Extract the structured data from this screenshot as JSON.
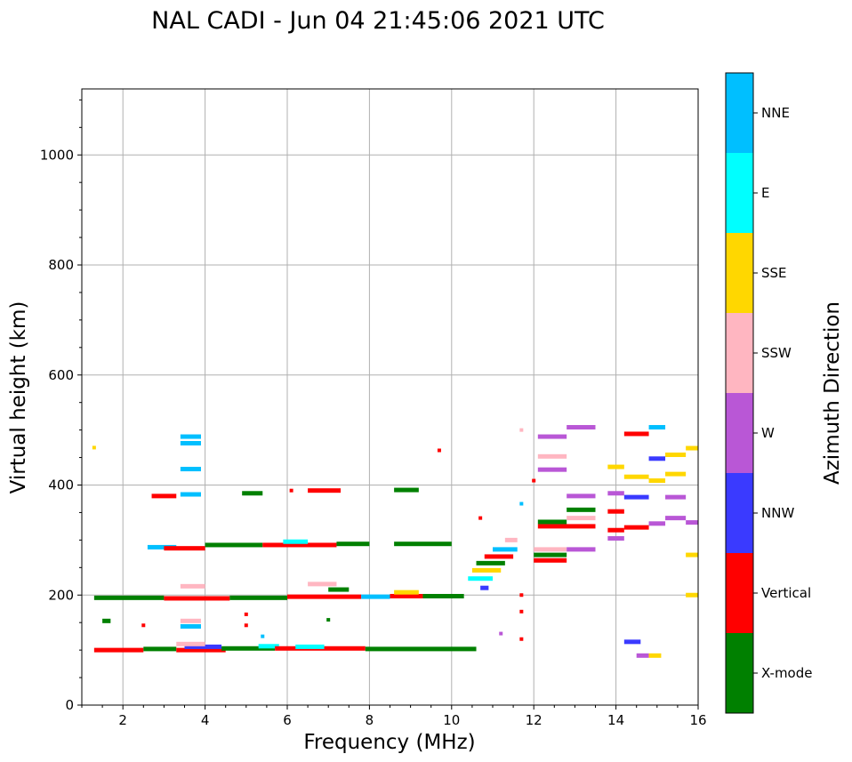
{
  "chart_data": {
    "type": "scatter",
    "title": "NAL CADI - Jun 04 21:45:06 2021 UTC",
    "xlabel": "Frequency (MHz)",
    "ylabel": "Virtual height (km)",
    "xlim": [
      1,
      16
    ],
    "ylim": [
      0,
      1120
    ],
    "xticks": [
      2,
      4,
      6,
      8,
      10,
      12,
      14,
      16
    ],
    "yticks": [
      0,
      200,
      400,
      600,
      800,
      1000
    ],
    "grid": true,
    "colorbar": {
      "label": "Azimuth Direction",
      "categories": [
        {
          "name": "X-mode",
          "color": "#008000"
        },
        {
          "name": "Vertical",
          "color": "#ff0000"
        },
        {
          "name": "NNW",
          "color": "#3a3aff"
        },
        {
          "name": "W",
          "color": "#b957d6"
        },
        {
          "name": "SSW",
          "color": "#ffb6c1"
        },
        {
          "name": "SSE",
          "color": "#ffd700"
        },
        {
          "name": "E",
          "color": "#00ffff"
        },
        {
          "name": "NNE",
          "color": "#00bfff"
        }
      ]
    },
    "segments": [
      {
        "f0": 1.3,
        "f1": 2.5,
        "h": 100,
        "c": "Vertical"
      },
      {
        "f0": 2.5,
        "f1": 3.3,
        "h": 102,
        "c": "X-mode"
      },
      {
        "f0": 3.3,
        "f1": 4.5,
        "h": 100,
        "c": "Vertical"
      },
      {
        "f0": 3.5,
        "f1": 4.4,
        "h": 106,
        "c": "NNW"
      },
      {
        "f0": 3.3,
        "f1": 4.0,
        "h": 111,
        "c": "SSW"
      },
      {
        "f0": 4.4,
        "f1": 5.7,
        "h": 103,
        "c": "X-mode"
      },
      {
        "f0": 5.3,
        "f1": 5.8,
        "h": 107,
        "c": "E"
      },
      {
        "f0": 5.7,
        "f1": 7.9,
        "h": 103,
        "c": "Vertical"
      },
      {
        "f0": 6.2,
        "f1": 6.9,
        "h": 106,
        "c": "E"
      },
      {
        "f0": 7.9,
        "f1": 10.6,
        "h": 102,
        "c": "X-mode"
      },
      {
        "f0": 1.5,
        "f1": 1.7,
        "h": 153,
        "c": "X-mode"
      },
      {
        "f0": 3.4,
        "f1": 3.9,
        "h": 153,
        "c": "SSW"
      },
      {
        "f0": 3.4,
        "f1": 3.9,
        "h": 143,
        "c": "NNE"
      },
      {
        "f0": 1.3,
        "f1": 3.0,
        "h": 195,
        "c": "X-mode"
      },
      {
        "f0": 3.0,
        "f1": 4.6,
        "h": 194,
        "c": "Vertical"
      },
      {
        "f0": 3.4,
        "f1": 4.0,
        "h": 216,
        "c": "SSW"
      },
      {
        "f0": 4.6,
        "f1": 6.0,
        "h": 195,
        "c": "X-mode"
      },
      {
        "f0": 6.0,
        "f1": 7.8,
        "h": 197,
        "c": "Vertical"
      },
      {
        "f0": 6.5,
        "f1": 7.2,
        "h": 220,
        "c": "SSW"
      },
      {
        "f0": 7.0,
        "f1": 7.5,
        "h": 210,
        "c": "X-mode"
      },
      {
        "f0": 7.8,
        "f1": 8.5,
        "h": 197,
        "c": "NNE"
      },
      {
        "f0": 8.5,
        "f1": 9.3,
        "h": 198,
        "c": "Vertical"
      },
      {
        "f0": 8.6,
        "f1": 9.2,
        "h": 205,
        "c": "SSE"
      },
      {
        "f0": 9.3,
        "f1": 10.3,
        "h": 198,
        "c": "X-mode"
      },
      {
        "f0": 2.6,
        "f1": 3.3,
        "h": 287,
        "c": "NNE"
      },
      {
        "f0": 3.0,
        "f1": 4.0,
        "h": 285,
        "c": "Vertical"
      },
      {
        "f0": 4.0,
        "f1": 5.4,
        "h": 291,
        "c": "X-mode"
      },
      {
        "f0": 5.4,
        "f1": 7.2,
        "h": 291,
        "c": "Vertical"
      },
      {
        "f0": 5.9,
        "f1": 6.5,
        "h": 297,
        "c": "E"
      },
      {
        "f0": 7.2,
        "f1": 8.0,
        "h": 293,
        "c": "X-mode"
      },
      {
        "f0": 8.6,
        "f1": 10.0,
        "h": 293,
        "c": "X-mode"
      },
      {
        "f0": 2.7,
        "f1": 3.3,
        "h": 380,
        "c": "Vertical"
      },
      {
        "f0": 3.4,
        "f1": 3.9,
        "h": 383,
        "c": "NNE"
      },
      {
        "f0": 4.9,
        "f1": 5.4,
        "h": 385,
        "c": "X-mode"
      },
      {
        "f0": 6.5,
        "f1": 7.3,
        "h": 390,
        "c": "Vertical"
      },
      {
        "f0": 8.6,
        "f1": 9.2,
        "h": 391,
        "c": "X-mode"
      },
      {
        "f0": 3.4,
        "f1": 3.9,
        "h": 429,
        "c": "NNE"
      },
      {
        "f0": 3.4,
        "f1": 3.9,
        "h": 476,
        "c": "NNE"
      },
      {
        "f0": 3.4,
        "f1": 3.9,
        "h": 488,
        "c": "NNE"
      },
      {
        "f0": 10.4,
        "f1": 11.0,
        "h": 230,
        "c": "E"
      },
      {
        "f0": 10.5,
        "f1": 11.2,
        "h": 245,
        "c": "SSE"
      },
      {
        "f0": 10.6,
        "f1": 11.3,
        "h": 258,
        "c": "X-mode"
      },
      {
        "f0": 10.8,
        "f1": 11.5,
        "h": 270,
        "c": "Vertical"
      },
      {
        "f0": 11.0,
        "f1": 11.6,
        "h": 283,
        "c": "NNE"
      },
      {
        "f0": 11.3,
        "f1": 11.6,
        "h": 300,
        "c": "SSW"
      },
      {
        "f0": 10.7,
        "f1": 10.9,
        "h": 213,
        "c": "NNW"
      },
      {
        "f0": 12.0,
        "f1": 12.8,
        "h": 263,
        "c": "Vertical"
      },
      {
        "f0": 12.0,
        "f1": 12.8,
        "h": 273,
        "c": "X-mode"
      },
      {
        "f0": 12.0,
        "f1": 12.8,
        "h": 283,
        "c": "SSW"
      },
      {
        "f0": 12.1,
        "f1": 13.5,
        "h": 325,
        "c": "Vertical"
      },
      {
        "f0": 12.1,
        "f1": 12.8,
        "h": 333,
        "c": "X-mode"
      },
      {
        "f0": 12.8,
        "f1": 13.5,
        "h": 283,
        "c": "W"
      },
      {
        "f0": 12.8,
        "f1": 13.5,
        "h": 340,
        "c": "SSW"
      },
      {
        "f0": 12.8,
        "f1": 13.5,
        "h": 355,
        "c": "X-mode"
      },
      {
        "f0": 12.8,
        "f1": 13.5,
        "h": 380,
        "c": "W"
      },
      {
        "f0": 12.1,
        "f1": 12.8,
        "h": 428,
        "c": "W"
      },
      {
        "f0": 12.1,
        "f1": 12.8,
        "h": 452,
        "c": "SSW"
      },
      {
        "f0": 12.1,
        "f1": 12.8,
        "h": 488,
        "c": "W"
      },
      {
        "f0": 12.8,
        "f1": 13.5,
        "h": 505,
        "c": "W"
      },
      {
        "f0": 13.8,
        "f1": 14.2,
        "h": 318,
        "c": "Vertical"
      },
      {
        "f0": 13.8,
        "f1": 14.2,
        "h": 303,
        "c": "W"
      },
      {
        "f0": 13.8,
        "f1": 14.2,
        "h": 352,
        "c": "Vertical"
      },
      {
        "f0": 13.8,
        "f1": 14.2,
        "h": 385,
        "c": "W"
      },
      {
        "f0": 13.8,
        "f1": 14.2,
        "h": 433,
        "c": "SSE"
      },
      {
        "f0": 14.2,
        "f1": 14.8,
        "h": 323,
        "c": "Vertical"
      },
      {
        "f0": 14.2,
        "f1": 14.8,
        "h": 378,
        "c": "NNW"
      },
      {
        "f0": 14.2,
        "f1": 14.8,
        "h": 415,
        "c": "SSE"
      },
      {
        "f0": 14.2,
        "f1": 14.8,
        "h": 493,
        "c": "Vertical"
      },
      {
        "f0": 14.2,
        "f1": 14.6,
        "h": 115,
        "c": "NNW"
      },
      {
        "f0": 14.5,
        "f1": 14.8,
        "h": 90,
        "c": "W"
      },
      {
        "f0": 14.8,
        "f1": 15.1,
        "h": 90,
        "c": "SSE"
      },
      {
        "f0": 14.8,
        "f1": 15.2,
        "h": 330,
        "c": "W"
      },
      {
        "f0": 14.8,
        "f1": 15.2,
        "h": 408,
        "c": "SSE"
      },
      {
        "f0": 14.8,
        "f1": 15.2,
        "h": 448,
        "c": "NNW"
      },
      {
        "f0": 14.8,
        "f1": 15.2,
        "h": 505,
        "c": "NNE"
      },
      {
        "f0": 15.2,
        "f1": 15.7,
        "h": 340,
        "c": "W"
      },
      {
        "f0": 15.2,
        "f1": 15.7,
        "h": 378,
        "c": "W"
      },
      {
        "f0": 15.2,
        "f1": 15.7,
        "h": 420,
        "c": "SSE"
      },
      {
        "f0": 15.2,
        "f1": 15.7,
        "h": 455,
        "c": "SSE"
      },
      {
        "f0": 15.7,
        "f1": 16.0,
        "h": 200,
        "c": "SSE"
      },
      {
        "f0": 15.7,
        "f1": 16.0,
        "h": 273,
        "c": "SSE"
      },
      {
        "f0": 15.7,
        "f1": 16.0,
        "h": 332,
        "c": "W"
      },
      {
        "f0": 15.7,
        "f1": 16.0,
        "h": 467,
        "c": "SSE"
      }
    ],
    "points": [
      {
        "f": 1.3,
        "h": 468,
        "c": "SSE"
      },
      {
        "f": 9.7,
        "h": 463,
        "c": "Vertical"
      },
      {
        "f": 11.7,
        "h": 500,
        "c": "SSW"
      },
      {
        "f": 11.7,
        "h": 366,
        "c": "NNE"
      },
      {
        "f": 12.0,
        "h": 408,
        "c": "Vertical"
      },
      {
        "f": 11.7,
        "h": 200,
        "c": "Vertical"
      },
      {
        "f": 11.7,
        "h": 170,
        "c": "Vertical"
      },
      {
        "f": 11.7,
        "h": 120,
        "c": "Vertical"
      },
      {
        "f": 11.2,
        "h": 130,
        "c": "W"
      },
      {
        "f": 10.7,
        "h": 340,
        "c": "Vertical"
      },
      {
        "f": 5.0,
        "h": 165,
        "c": "Vertical"
      },
      {
        "f": 5.0,
        "h": 145,
        "c": "Vertical"
      },
      {
        "f": 5.4,
        "h": 125,
        "c": "NNE"
      },
      {
        "f": 2.5,
        "h": 145,
        "c": "Vertical"
      },
      {
        "f": 6.1,
        "h": 390,
        "c": "Vertical"
      },
      {
        "f": 7.0,
        "h": 155,
        "c": "X-mode"
      }
    ]
  }
}
